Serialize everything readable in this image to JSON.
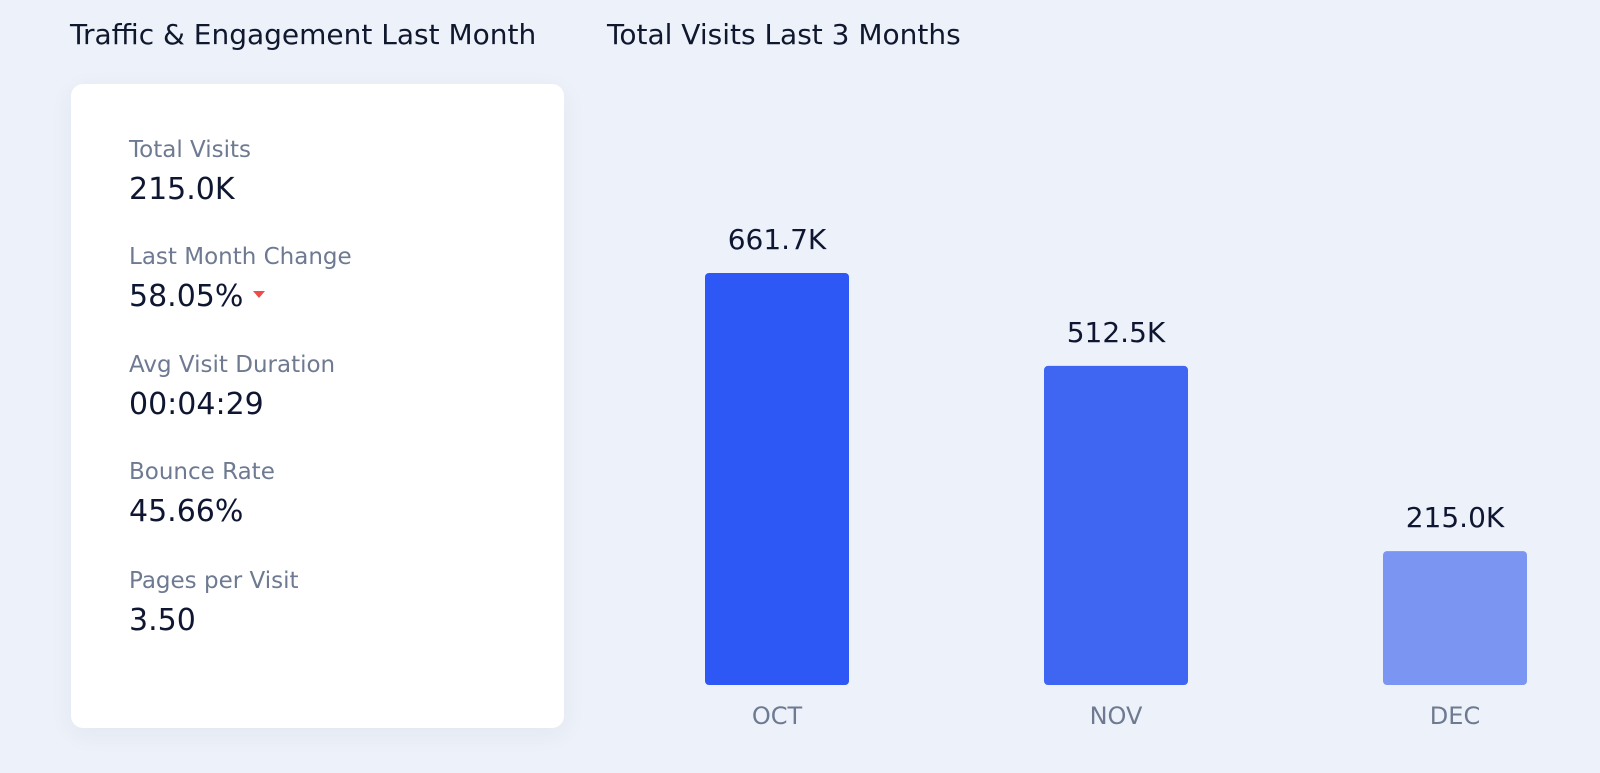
{
  "traffic_panel": {
    "title": "Traffic & Engagement Last Month",
    "stats": [
      {
        "label": "Total Visits",
        "value": "215.0K"
      },
      {
        "label": "Last Month Change",
        "value": "58.05%",
        "trend_icon": "caret-down-icon",
        "trend_color": "#ef4b4b"
      },
      {
        "label": "Avg Visit Duration",
        "value": "00:04:29"
      },
      {
        "label": "Bounce Rate",
        "value": "45.66%"
      },
      {
        "label": "Pages per Visit",
        "value": "3.50"
      }
    ]
  },
  "chart_data": {
    "type": "bar",
    "title": "Total Visits Last 3 Months",
    "categories": [
      "OCT",
      "NOV",
      "DEC"
    ],
    "values": [
      661700,
      512500,
      215000
    ],
    "value_labels": [
      "661.7K",
      "512.5K",
      "215.0K"
    ],
    "bar_colors": [
      "#2d58f5",
      "#3f66f3",
      "#7a96f2"
    ],
    "ylim": [
      0,
      661700
    ],
    "grid": false,
    "legend": "none"
  }
}
